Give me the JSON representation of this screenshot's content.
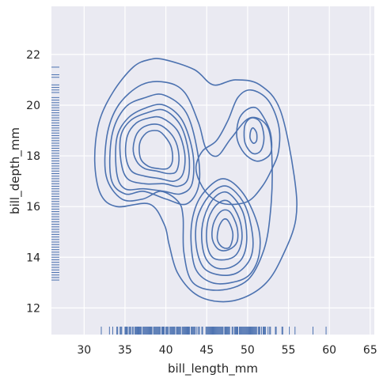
{
  "chart_data": {
    "type": "kde-contour",
    "xlabel": "bill_length_mm",
    "ylabel": "bill_depth_mm",
    "xlim": [
      26.0,
      65.5
    ],
    "ylim": [
      10.95,
      23.9
    ],
    "x_ticks": [
      30,
      35,
      40,
      45,
      50,
      55,
      60,
      65
    ],
    "y_ticks": [
      12,
      14,
      16,
      18,
      20,
      22
    ],
    "grid": true,
    "line_color": "#4c72b0",
    "background_color": "#eaeaf2",
    "contours": [
      {
        "level": 1,
        "points": [
          [
            39.8,
            21.8
          ],
          [
            43.5,
            21.4
          ],
          [
            45.8,
            20.8
          ],
          [
            48.5,
            21.0
          ],
          [
            51.5,
            20.8
          ],
          [
            54.0,
            19.8
          ],
          [
            55.7,
            17.2
          ],
          [
            55.9,
            15.5
          ],
          [
            54.2,
            14.0
          ],
          [
            52.3,
            13.0
          ],
          [
            49.5,
            12.4
          ],
          [
            46.5,
            12.25
          ],
          [
            43.6,
            12.55
          ],
          [
            41.4,
            13.4
          ],
          [
            40.4,
            14.5
          ],
          [
            39.8,
            15.3
          ],
          [
            38.0,
            16.1
          ],
          [
            34.0,
            16.0
          ],
          [
            32.0,
            16.5
          ],
          [
            31.3,
            17.8
          ],
          [
            31.8,
            19.3
          ],
          [
            33.5,
            20.5
          ],
          [
            36.0,
            21.5
          ],
          [
            38.0,
            21.8
          ]
        ]
      },
      {
        "level": 2,
        "points": [
          [
            40.0,
            20.9
          ],
          [
            42.3,
            20.5
          ],
          [
            44.0,
            19.3
          ],
          [
            44.9,
            18.3
          ],
          [
            46.3,
            18.0
          ],
          [
            48.0,
            18.7
          ],
          [
            50.3,
            19.5
          ],
          [
            52.5,
            19.1
          ],
          [
            53.0,
            17.6
          ],
          [
            52.8,
            15.8
          ],
          [
            52.0,
            14.3
          ],
          [
            50.0,
            13.1
          ],
          [
            46.5,
            12.7
          ],
          [
            43.3,
            13.0
          ],
          [
            42.2,
            14.2
          ],
          [
            42.1,
            15.6
          ],
          [
            41.5,
            16.2
          ],
          [
            39.4,
            16.6
          ],
          [
            37.2,
            16.3
          ],
          [
            34.6,
            16.3
          ],
          [
            32.7,
            17.2
          ],
          [
            32.8,
            18.8
          ],
          [
            34.2,
            20.0
          ],
          [
            37.0,
            20.8
          ]
        ]
      },
      {
        "level": 3,
        "points": [
          [
            39.8,
            20.4
          ],
          [
            42.5,
            19.7
          ],
          [
            43.9,
            18.1
          ],
          [
            44.0,
            16.8
          ],
          [
            42.5,
            16.1
          ],
          [
            40.0,
            16.3
          ],
          [
            37.3,
            16.6
          ],
          [
            35.0,
            16.5
          ],
          [
            33.3,
            17.1
          ],
          [
            33.4,
            18.8
          ],
          [
            35.0,
            19.9
          ],
          [
            37.5,
            20.3
          ]
        ]
      },
      {
        "level": 4,
        "points": [
          [
            39.8,
            20.0
          ],
          [
            42.0,
            19.4
          ],
          [
            43.3,
            18.1
          ],
          [
            43.2,
            16.9
          ],
          [
            41.8,
            16.5
          ],
          [
            39.8,
            16.6
          ],
          [
            37.3,
            16.7
          ],
          [
            35.0,
            16.7
          ],
          [
            34.0,
            17.3
          ],
          [
            34.0,
            18.7
          ],
          [
            35.4,
            19.5
          ],
          [
            37.6,
            19.9
          ]
        ]
      },
      {
        "level": 5,
        "points": [
          [
            39.8,
            19.8
          ],
          [
            41.8,
            19.2
          ],
          [
            42.8,
            18.1
          ],
          [
            42.7,
            17.1
          ],
          [
            41.5,
            16.8
          ],
          [
            39.8,
            16.9
          ],
          [
            37.4,
            16.9
          ],
          [
            35.3,
            17.1
          ],
          [
            34.5,
            17.8
          ],
          [
            34.5,
            18.8
          ],
          [
            35.7,
            19.4
          ],
          [
            37.7,
            19.7
          ]
        ]
      },
      {
        "level": 6,
        "points": [
          [
            39.5,
            19.5
          ],
          [
            41.4,
            19.0
          ],
          [
            42.3,
            18.1
          ],
          [
            42.1,
            17.3
          ],
          [
            41.0,
            17.0
          ],
          [
            39.3,
            17.1
          ],
          [
            37.4,
            17.2
          ],
          [
            35.8,
            17.4
          ],
          [
            35.1,
            18.0
          ],
          [
            35.3,
            18.8
          ],
          [
            36.4,
            19.3
          ],
          [
            38.0,
            19.5
          ]
        ]
      },
      {
        "level": 7,
        "points": [
          [
            39.4,
            19.2
          ],
          [
            41.0,
            18.7
          ],
          [
            41.6,
            18.0
          ],
          [
            41.3,
            17.4
          ],
          [
            40.3,
            17.3
          ],
          [
            38.9,
            17.4
          ],
          [
            37.4,
            17.5
          ],
          [
            36.4,
            17.8
          ],
          [
            36.0,
            18.3
          ],
          [
            36.5,
            18.9
          ],
          [
            37.7,
            19.2
          ]
        ]
      },
      {
        "level": 8,
        "points": [
          [
            39.5,
            18.9
          ],
          [
            40.6,
            18.4
          ],
          [
            40.8,
            17.8
          ],
          [
            40.2,
            17.5
          ],
          [
            39.0,
            17.5
          ],
          [
            37.8,
            17.6
          ],
          [
            36.9,
            17.9
          ],
          [
            36.8,
            18.5
          ],
          [
            37.6,
            18.9
          ],
          [
            38.6,
            19.0
          ]
        ]
      },
      {
        "level": 2,
        "points": [
          [
            50.4,
            20.6
          ],
          [
            52.5,
            20.2
          ],
          [
            53.8,
            19.2
          ],
          [
            53.8,
            18.2
          ],
          [
            53.0,
            17.5
          ],
          [
            51.8,
            16.8
          ],
          [
            50.0,
            16.2
          ],
          [
            47.3,
            16.1
          ],
          [
            45.4,
            16.4
          ],
          [
            44.1,
            17.0
          ],
          [
            43.7,
            17.6
          ],
          [
            44.5,
            18.2
          ],
          [
            46.2,
            18.6
          ],
          [
            47.6,
            19.4
          ],
          [
            48.8,
            20.3
          ]
        ]
      },
      {
        "level": 3,
        "points": [
          [
            49.8,
            19.8
          ],
          [
            51.0,
            19.9
          ],
          [
            52.0,
            19.5
          ],
          [
            52.8,
            18.9
          ],
          [
            52.9,
            18.2
          ],
          [
            52.2,
            17.9
          ],
          [
            51.0,
            17.8
          ],
          [
            49.6,
            18.1
          ],
          [
            48.7,
            18.7
          ],
          [
            48.9,
            19.4
          ]
        ]
      },
      {
        "level": 4,
        "points": [
          [
            50.7,
            19.5
          ],
          [
            51.6,
            19.3
          ],
          [
            52.0,
            18.7
          ],
          [
            51.6,
            18.2
          ],
          [
            50.6,
            18.1
          ],
          [
            49.7,
            18.5
          ],
          [
            49.6,
            19.1
          ],
          [
            50.0,
            19.4
          ]
        ]
      },
      {
        "level": 5,
        "points": [
          [
            50.7,
            19.1
          ],
          [
            51.1,
            18.9
          ],
          [
            51.1,
            18.6
          ],
          [
            50.7,
            18.5
          ],
          [
            50.3,
            18.7
          ],
          [
            50.4,
            19.0
          ]
        ]
      },
      {
        "level": 3,
        "points": [
          [
            47.0,
            17.1
          ],
          [
            49.5,
            16.5
          ],
          [
            51.3,
            15.2
          ],
          [
            51.4,
            14.1
          ],
          [
            50.2,
            13.3
          ],
          [
            48.0,
            13.0
          ],
          [
            45.6,
            13.0
          ],
          [
            43.7,
            13.5
          ],
          [
            43.1,
            14.5
          ],
          [
            43.3,
            15.6
          ],
          [
            44.5,
            16.5
          ]
        ]
      },
      {
        "level": 4,
        "points": [
          [
            47.5,
            16.8
          ],
          [
            49.6,
            16.1
          ],
          [
            50.6,
            14.9
          ],
          [
            50.4,
            14.0
          ],
          [
            48.8,
            13.4
          ],
          [
            46.6,
            13.3
          ],
          [
            44.6,
            13.6
          ],
          [
            43.7,
            14.5
          ],
          [
            43.9,
            15.6
          ],
          [
            45.5,
            16.5
          ]
        ]
      },
      {
        "level": 5,
        "points": [
          [
            47.8,
            16.5
          ],
          [
            49.4,
            15.8
          ],
          [
            49.9,
            14.8
          ],
          [
            49.4,
            14.0
          ],
          [
            47.9,
            13.6
          ],
          [
            46.0,
            13.6
          ],
          [
            44.7,
            14.1
          ],
          [
            44.4,
            15.1
          ],
          [
            45.2,
            16.0
          ],
          [
            46.5,
            16.5
          ]
        ]
      },
      {
        "level": 6,
        "points": [
          [
            47.7,
            16.2
          ],
          [
            49.0,
            15.5
          ],
          [
            49.3,
            14.7
          ],
          [
            48.6,
            14.1
          ],
          [
            47.2,
            13.9
          ],
          [
            45.7,
            14.0
          ],
          [
            45.0,
            14.6
          ],
          [
            45.2,
            15.5
          ],
          [
            46.3,
            16.1
          ]
        ]
      },
      {
        "level": 7,
        "points": [
          [
            47.8,
            15.8
          ],
          [
            48.7,
            15.2
          ],
          [
            48.7,
            14.6
          ],
          [
            47.7,
            14.3
          ],
          [
            46.5,
            14.3
          ],
          [
            45.7,
            14.7
          ],
          [
            45.8,
            15.3
          ],
          [
            46.7,
            15.8
          ]
        ]
      },
      {
        "level": 8,
        "points": [
          [
            47.7,
            15.4
          ],
          [
            48.2,
            14.9
          ],
          [
            47.8,
            14.4
          ],
          [
            46.9,
            14.4
          ],
          [
            46.3,
            14.7
          ],
          [
            46.5,
            15.2
          ],
          [
            47.1,
            15.5
          ]
        ]
      }
    ],
    "rug_x": [
      32.1,
      33.1,
      33.5,
      34.0,
      34.1,
      34.4,
      34.5,
      34.6,
      35.0,
      35.1,
      35.2,
      35.3,
      35.5,
      35.6,
      35.7,
      35.9,
      36.0,
      36.2,
      36.3,
      36.4,
      36.5,
      36.6,
      36.7,
      36.8,
      36.9,
      37.0,
      37.2,
      37.3,
      37.4,
      37.5,
      37.6,
      37.7,
      37.8,
      37.9,
      38.0,
      38.1,
      38.2,
      38.3,
      38.5,
      38.6,
      38.7,
      38.8,
      38.9,
      39.0,
      39.1,
      39.2,
      39.3,
      39.5,
      39.6,
      39.7,
      39.8,
      40.0,
      40.1,
      40.2,
      40.3,
      40.5,
      40.6,
      40.7,
      40.8,
      40.9,
      41.0,
      41.1,
      41.3,
      41.4,
      41.5,
      41.6,
      41.7,
      41.8,
      42.0,
      42.1,
      42.2,
      42.3,
      42.4,
      42.5,
      42.6,
      42.7,
      42.8,
      42.9,
      43.1,
      43.2,
      43.3,
      43.4,
      43.5,
      43.6,
      43.8,
      44.0,
      44.1,
      44.4,
      44.5,
      44.9,
      45.0,
      45.1,
      45.2,
      45.3,
      45.4,
      45.5,
      45.6,
      45.7,
      45.8,
      45.9,
      46.0,
      46.1,
      46.2,
      46.3,
      46.4,
      46.5,
      46.6,
      46.7,
      46.8,
      46.9,
      47.0,
      47.2,
      47.3,
      47.4,
      47.5,
      47.6,
      47.7,
      47.8,
      48.1,
      48.2,
      48.4,
      48.5,
      48.6,
      48.7,
      48.8,
      49.0,
      49.1,
      49.2,
      49.3,
      49.4,
      49.5,
      49.6,
      49.7,
      49.8,
      49.9,
      50.0,
      50.1,
      50.2,
      50.3,
      50.4,
      50.5,
      50.6,
      50.7,
      50.8,
      50.9,
      51.0,
      51.1,
      51.3,
      51.4,
      51.5,
      51.7,
      51.9,
      52.0,
      52.1,
      52.2,
      52.5,
      52.7,
      52.8,
      53.4,
      53.5,
      54.2,
      54.3,
      55.1,
      55.8,
      58.0,
      59.6
    ],
    "rug_y": [
      13.1,
      13.2,
      13.3,
      13.4,
      13.5,
      13.6,
      13.7,
      13.8,
      13.9,
      14.0,
      14.1,
      14.2,
      14.3,
      14.4,
      14.5,
      14.6,
      14.7,
      14.8,
      14.9,
      15.0,
      15.1,
      15.2,
      15.3,
      15.4,
      15.5,
      15.6,
      15.7,
      15.8,
      15.9,
      16.0,
      16.1,
      16.2,
      16.3,
      16.4,
      16.5,
      16.6,
      16.7,
      16.8,
      16.9,
      17.0,
      17.1,
      17.2,
      17.3,
      17.4,
      17.5,
      17.6,
      17.7,
      17.8,
      17.9,
      18.0,
      18.1,
      18.2,
      18.3,
      18.4,
      18.5,
      18.6,
      18.7,
      18.8,
      18.9,
      19.0,
      19.1,
      19.2,
      19.3,
      19.4,
      19.5,
      19.6,
      19.7,
      19.8,
      19.9,
      20.0,
      20.1,
      20.2,
      20.3,
      20.5,
      20.6,
      20.7,
      20.8,
      21.1,
      21.2,
      21.5
    ]
  }
}
